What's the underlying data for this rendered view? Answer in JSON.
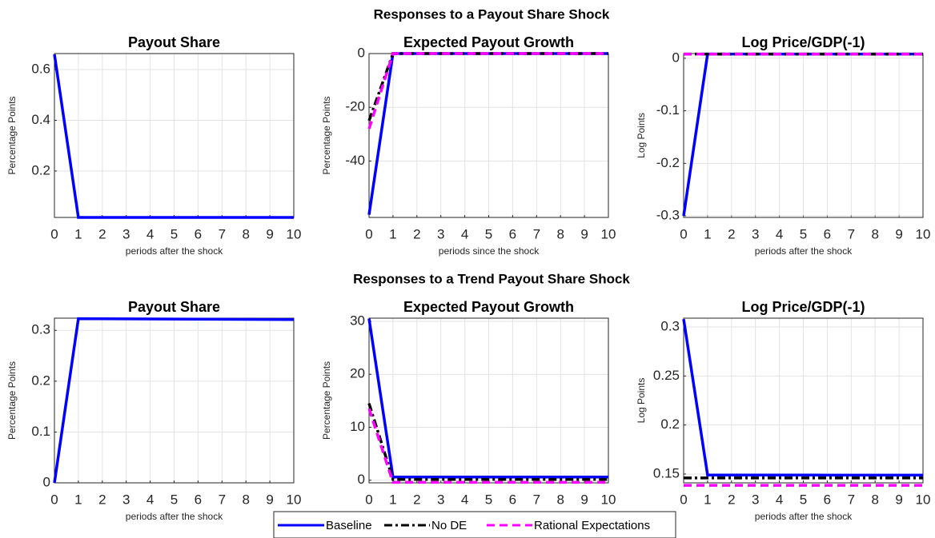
{
  "titles": [
    "Responses to a Payout Share Shock",
    "Responses to a Trend Payout Share Shock"
  ],
  "chart_data": [
    {
      "type": "line",
      "title": "Payout Share",
      "y_label": "Percentage Points",
      "x_label": "periods after the shock",
      "x": [
        0,
        1,
        2,
        3,
        4,
        5,
        6,
        7,
        8,
        9,
        10
      ],
      "xlim": [
        0,
        10
      ],
      "xticks": [
        0,
        1,
        2,
        3,
        4,
        5,
        6,
        7,
        8,
        9,
        10
      ],
      "ylim": [
        0.017,
        0.663
      ],
      "yticks": [
        0.2,
        0.4,
        0.6
      ],
      "grid": true,
      "series": [
        {
          "name": "Baseline",
          "color": "#0000ff",
          "linestyle": "solid",
          "values": [
            0.66,
            0.017,
            0.017,
            0.017,
            0.017,
            0.017,
            0.017,
            0.017,
            0.017,
            0.017,
            0.017
          ]
        }
      ]
    },
    {
      "type": "line",
      "title": "Expected Payout Growth",
      "y_label": "Percentage Points",
      "x_label": "periods since the shock",
      "x": [
        0,
        1,
        2,
        3,
        4,
        5,
        6,
        7,
        8,
        9,
        10
      ],
      "xlim": [
        0,
        10
      ],
      "xticks": [
        0,
        1,
        2,
        3,
        4,
        5,
        6,
        7,
        8,
        9,
        10
      ],
      "ylim": [
        -61,
        0
      ],
      "yticks": [
        -40,
        -20,
        0
      ],
      "grid": true,
      "series": [
        {
          "name": "Baseline",
          "color": "#0000ff",
          "linestyle": "solid",
          "values": [
            -60,
            0,
            0,
            0,
            0,
            0,
            0,
            0,
            0,
            0,
            0
          ]
        },
        {
          "name": "No DE",
          "color": "#000000",
          "linestyle": "dashdot",
          "values": [
            -25,
            0,
            0,
            0,
            0,
            0,
            0,
            0,
            0,
            0,
            0
          ]
        },
        {
          "name": "Rational Expectations",
          "color": "#ff00ff",
          "linestyle": "dashed",
          "values": [
            -28,
            0,
            0,
            0,
            0,
            0,
            0,
            0,
            0,
            0,
            0
          ]
        }
      ]
    },
    {
      "type": "line",
      "title": "Log Price/GDP(-1)",
      "y_label": "Log Points",
      "x_label": "periods after the shock",
      "x": [
        0,
        1,
        2,
        3,
        4,
        5,
        6,
        7,
        8,
        9,
        10
      ],
      "xlim": [
        0,
        10
      ],
      "xticks": [
        0,
        1,
        2,
        3,
        4,
        5,
        6,
        7,
        8,
        9,
        10
      ],
      "ylim": [
        -0.303,
        0.009
      ],
      "yticks": [
        -0.3,
        -0.2,
        -0.1,
        0
      ],
      "grid": true,
      "series": [
        {
          "name": "Baseline",
          "color": "#0000ff",
          "linestyle": "solid",
          "values": [
            -0.3,
            0.008,
            0.008,
            0.008,
            0.008,
            0.008,
            0.008,
            0.008,
            0.008,
            0.008,
            0.008
          ]
        },
        {
          "name": "No DE",
          "color": "#000000",
          "linestyle": "dashdot",
          "values": [
            0.008,
            0.008,
            0.008,
            0.008,
            0.008,
            0.008,
            0.008,
            0.008,
            0.008,
            0.008,
            0.008
          ]
        },
        {
          "name": "Rational Expectations",
          "color": "#ff00ff",
          "linestyle": "dashed",
          "values": [
            0.008,
            0.008,
            0.008,
            0.008,
            0.008,
            0.008,
            0.008,
            0.008,
            0.008,
            0.008,
            0.008
          ]
        }
      ]
    },
    {
      "type": "line",
      "title": "Payout Share",
      "y_label": "Percentage Points",
      "x_label": "periods after the shock",
      "x": [
        0,
        1,
        2,
        3,
        4,
        5,
        6,
        7,
        8,
        9,
        10
      ],
      "xlim": [
        0,
        10
      ],
      "xticks": [
        0,
        1,
        2,
        3,
        4,
        5,
        6,
        7,
        8,
        9,
        10
      ],
      "ylim": [
        0,
        0.324
      ],
      "yticks": [
        0,
        0.1,
        0.2,
        0.3
      ],
      "grid": true,
      "series": [
        {
          "name": "Baseline",
          "color": "#0000ff",
          "linestyle": "solid",
          "values": [
            0,
            0.323,
            0.3228,
            0.3226,
            0.3224,
            0.3222,
            0.322,
            0.3218,
            0.3216,
            0.3214,
            0.3212
          ]
        }
      ]
    },
    {
      "type": "line",
      "title": "Expected Payout Growth",
      "y_label": "Percentage Points",
      "x_label": "periods after the shock",
      "x": [
        0,
        1,
        2,
        3,
        4,
        5,
        6,
        7,
        8,
        9,
        10
      ],
      "xlim": [
        0,
        10
      ],
      "xticks": [
        0,
        1,
        2,
        3,
        4,
        5,
        6,
        7,
        8,
        9,
        10
      ],
      "ylim": [
        -0.5,
        30.6
      ],
      "yticks": [
        0,
        10,
        20,
        30
      ],
      "grid": true,
      "series": [
        {
          "name": "Baseline",
          "color": "#0000ff",
          "linestyle": "solid",
          "values": [
            30.5,
            0.6,
            0.6,
            0.6,
            0.6,
            0.6,
            0.6,
            0.6,
            0.6,
            0.6,
            0.6
          ]
        },
        {
          "name": "No DE",
          "color": "#000000",
          "linestyle": "dashdot",
          "values": [
            14.5,
            0.15,
            0.15,
            0.15,
            0.15,
            0.15,
            0.15,
            0.15,
            0.15,
            0.15,
            0.15
          ]
        },
        {
          "name": "Rational Expectations",
          "color": "#ff00ff",
          "linestyle": "dashed",
          "values": [
            13.5,
            -0.4,
            -0.4,
            -0.4,
            -0.4,
            -0.4,
            -0.4,
            -0.4,
            -0.4,
            -0.4,
            -0.4
          ]
        }
      ]
    },
    {
      "type": "line",
      "title": "Log Price/GDP(-1)",
      "y_label": "Log Points",
      "x_label": "periods after the shock",
      "x": [
        0,
        1,
        2,
        3,
        4,
        5,
        6,
        7,
        8,
        9,
        10
      ],
      "xlim": [
        0,
        10
      ],
      "xticks": [
        0,
        1,
        2,
        3,
        4,
        5,
        6,
        7,
        8,
        9,
        10
      ],
      "ylim": [
        0.141,
        0.309
      ],
      "yticks": [
        0.15,
        0.2,
        0.25,
        0.3
      ],
      "grid": true,
      "series": [
        {
          "name": "Baseline",
          "color": "#0000ff",
          "linestyle": "solid",
          "values": [
            0.308,
            0.149,
            0.149,
            0.149,
            0.149,
            0.149,
            0.1488,
            0.1488,
            0.1488,
            0.1488,
            0.1488
          ]
        },
        {
          "name": "No DE",
          "color": "#000000",
          "linestyle": "dashdot",
          "values": [
            0.146,
            0.146,
            0.146,
            0.146,
            0.146,
            0.146,
            0.146,
            0.146,
            0.146,
            0.146,
            0.146
          ]
        },
        {
          "name": "Rational Expectations",
          "color": "#ff00ff",
          "linestyle": "dashed",
          "values": [
            0.1385,
            0.1385,
            0.1385,
            0.1385,
            0.1385,
            0.1385,
            0.1385,
            0.1385,
            0.1385,
            0.1385,
            0.1385
          ]
        }
      ]
    }
  ]
}
